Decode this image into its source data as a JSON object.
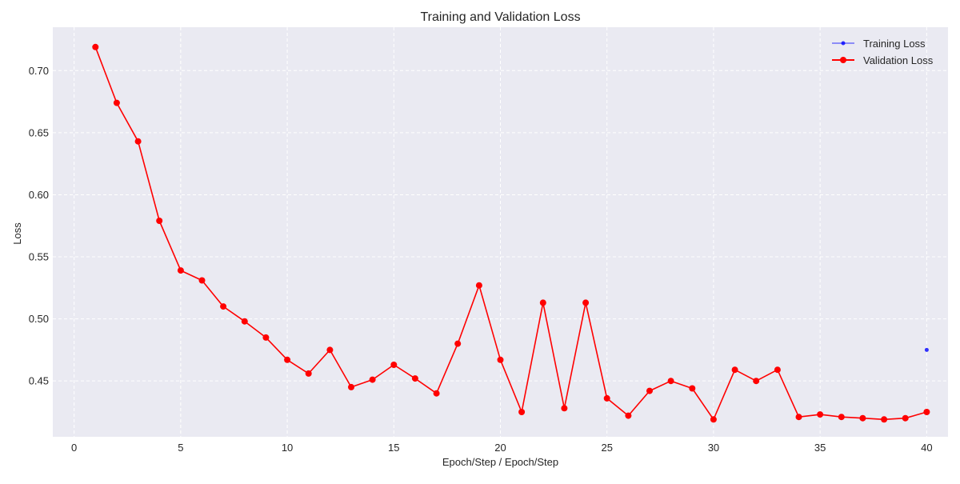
{
  "chart_data": {
    "type": "line",
    "title": "Training and Validation Loss",
    "xlabel": "Epoch/Step / Epoch/Step",
    "ylabel": "Loss",
    "xlim": [
      -1,
      41
    ],
    "ylim": [
      0.405,
      0.735
    ],
    "xticks": [
      0,
      5,
      10,
      15,
      20,
      25,
      30,
      35,
      40
    ],
    "yticks": [
      0.45,
      0.5,
      0.55,
      0.6,
      0.65,
      0.7
    ],
    "ytick_labels": [
      "0.45",
      "0.50",
      "0.55",
      "0.60",
      "0.65",
      "0.70"
    ],
    "grid": true,
    "legend_position": "top-right",
    "series": [
      {
        "name": "Training Loss",
        "color": "#0000ff",
        "marker": "small-dot",
        "x": [
          40
        ],
        "y": [
          0.475
        ]
      },
      {
        "name": "Validation Loss",
        "color": "#ff0000",
        "marker": "dot",
        "x": [
          1,
          2,
          3,
          4,
          5,
          6,
          7,
          8,
          9,
          10,
          11,
          12,
          13,
          14,
          15,
          16,
          17,
          18,
          19,
          20,
          21,
          22,
          23,
          24,
          25,
          26,
          27,
          28,
          29,
          30,
          31,
          32,
          33,
          34,
          35,
          36,
          37,
          38,
          39,
          40
        ],
        "y": [
          0.719,
          0.674,
          0.643,
          0.579,
          0.539,
          0.531,
          0.51,
          0.498,
          0.485,
          0.467,
          0.456,
          0.475,
          0.445,
          0.451,
          0.463,
          0.452,
          0.44,
          0.48,
          0.527,
          0.467,
          0.425,
          0.513,
          0.428,
          0.513,
          0.436,
          0.422,
          0.442,
          0.45,
          0.444,
          0.419,
          0.459,
          0.45,
          0.459,
          0.421,
          0.423,
          0.421,
          0.42,
          0.419,
          0.42,
          0.425
        ]
      }
    ]
  }
}
